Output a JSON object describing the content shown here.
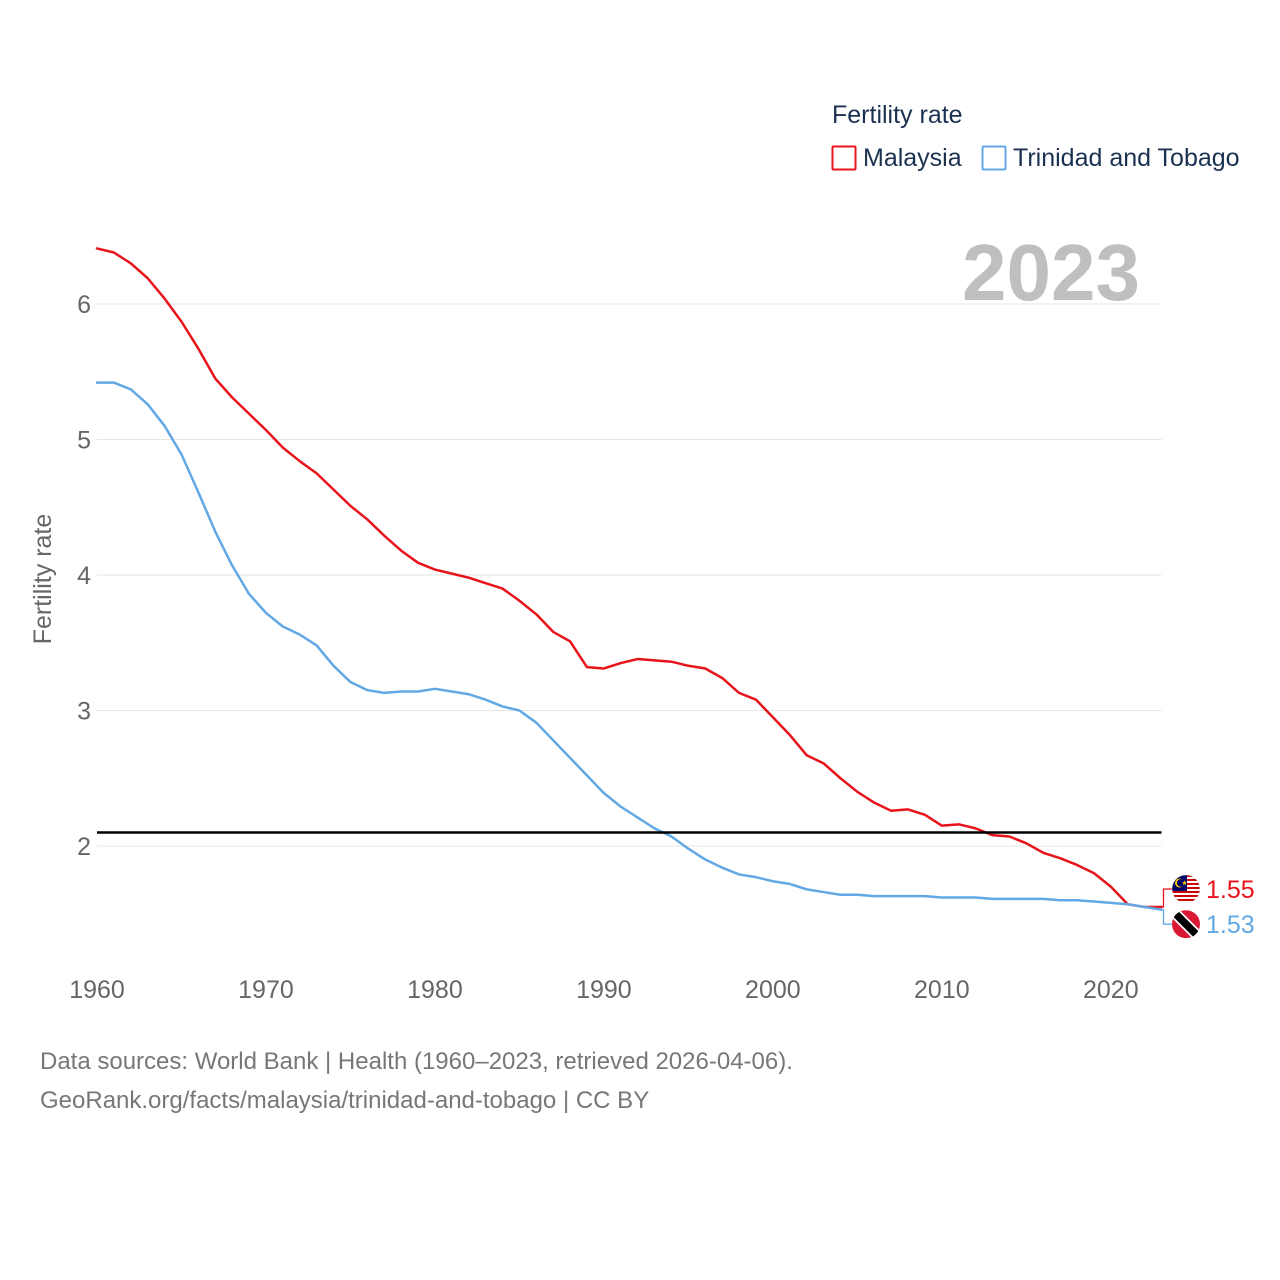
{
  "chart_data": {
    "type": "line",
    "title": "Fertility rate",
    "ylabel": "Fertility rate",
    "current_year": "2023",
    "xlim": [
      1960,
      2023
    ],
    "ylim": [
      1.2,
      6.5
    ],
    "xticks": [
      1960,
      1970,
      1980,
      1990,
      2000,
      2010,
      2020
    ],
    "yticks": [
      2,
      3,
      4,
      5,
      6
    ],
    "grid": true,
    "reference_line": {
      "value": 2.1,
      "color": "#000000"
    },
    "x": [
      1960,
      1961,
      1962,
      1963,
      1964,
      1965,
      1966,
      1967,
      1968,
      1969,
      1970,
      1971,
      1972,
      1973,
      1974,
      1975,
      1976,
      1977,
      1978,
      1979,
      1980,
      1981,
      1982,
      1983,
      1984,
      1985,
      1986,
      1987,
      1988,
      1989,
      1990,
      1991,
      1992,
      1993,
      1994,
      1995,
      1996,
      1997,
      1998,
      1999,
      2000,
      2001,
      2002,
      2003,
      2004,
      2005,
      2006,
      2007,
      2008,
      2009,
      2010,
      2011,
      2012,
      2013,
      2014,
      2015,
      2016,
      2017,
      2018,
      2019,
      2020,
      2021,
      2022,
      2023
    ],
    "series": [
      {
        "name": "Malaysia",
        "color": "#e8141b",
        "end_label": "1.55",
        "flag_icon": "malaysia-flag-icon",
        "values": [
          6.41,
          6.38,
          6.3,
          6.19,
          6.04,
          5.87,
          5.67,
          5.45,
          5.31,
          5.19,
          5.07,
          4.94,
          4.84,
          4.75,
          4.63,
          4.51,
          4.41,
          4.29,
          4.18,
          4.09,
          4.04,
          4.01,
          3.98,
          3.94,
          3.9,
          3.81,
          3.71,
          3.58,
          3.51,
          3.32,
          3.31,
          3.35,
          3.38,
          3.37,
          3.36,
          3.33,
          3.31,
          3.24,
          3.13,
          3.08,
          2.95,
          2.82,
          2.67,
          2.61,
          2.5,
          2.4,
          2.32,
          2.26,
          2.27,
          2.23,
          2.15,
          2.16,
          2.13,
          2.08,
          2.07,
          2.02,
          1.95,
          1.91,
          1.86,
          1.8,
          1.7,
          1.57,
          1.55,
          1.55
        ]
      },
      {
        "name": "Trinidad and Tobago",
        "color": "#62a8e5",
        "end_label": "1.53",
        "flag_icon": "trinidad-and-tobago-flag-icon",
        "values": [
          5.42,
          5.42,
          5.37,
          5.26,
          5.1,
          4.89,
          4.61,
          4.32,
          4.07,
          3.86,
          3.72,
          3.62,
          3.56,
          3.48,
          3.33,
          3.21,
          3.15,
          3.13,
          3.14,
          3.14,
          3.16,
          3.14,
          3.12,
          3.08,
          3.03,
          3.0,
          2.91,
          2.78,
          2.65,
          2.52,
          2.39,
          2.29,
          2.21,
          2.13,
          2.07,
          1.98,
          1.9,
          1.84,
          1.79,
          1.77,
          1.74,
          1.72,
          1.68,
          1.66,
          1.64,
          1.64,
          1.63,
          1.63,
          1.63,
          1.63,
          1.62,
          1.62,
          1.62,
          1.61,
          1.61,
          1.61,
          1.61,
          1.6,
          1.6,
          1.59,
          1.58,
          1.57,
          1.55,
          1.53
        ]
      }
    ]
  },
  "footer": {
    "sources": "Data sources: World Bank | Health (1960–2023, retrieved 2026-04-06).",
    "attribution": "GeoRank.org/facts/malaysia/trinidad-and-tobago | CC BY"
  }
}
